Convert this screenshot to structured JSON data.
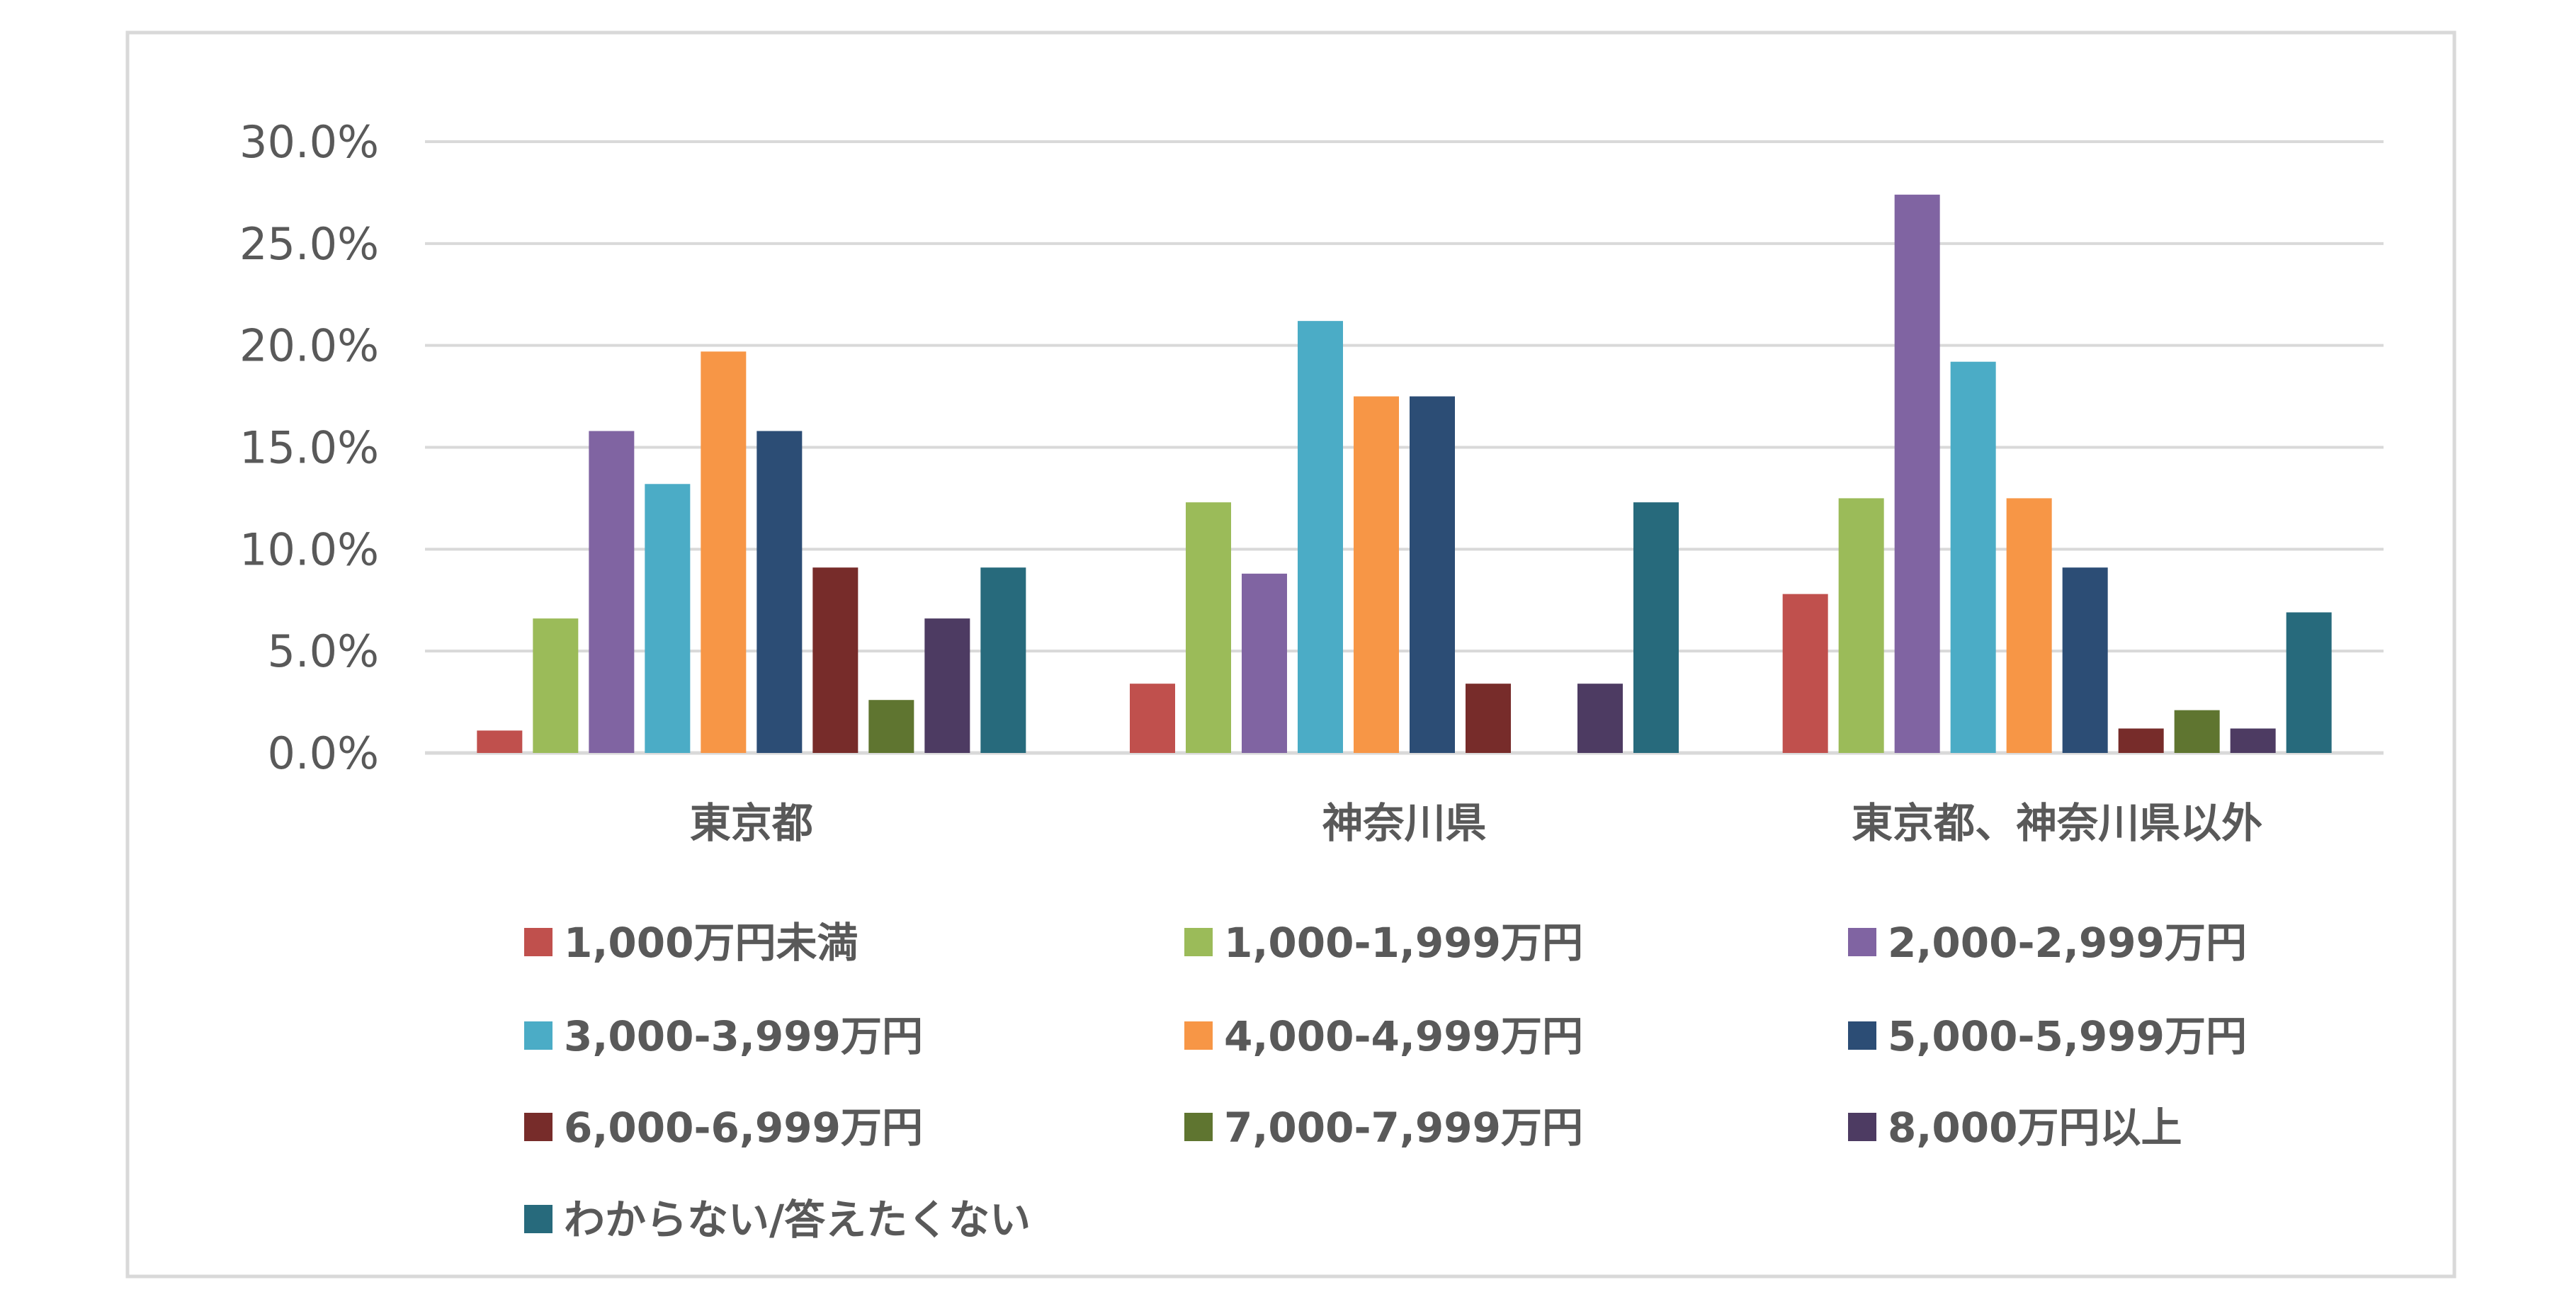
{
  "chart_data": {
    "type": "bar",
    "title": "",
    "xlabel": "",
    "ylabel": "",
    "ylim": [
      0,
      30
    ],
    "y_ticks": [
      "0.0%",
      "5.0%",
      "10.0%",
      "15.0%",
      "20.0%",
      "25.0%",
      "30.0%"
    ],
    "y_tick_values": [
      0,
      5,
      10,
      15,
      20,
      25,
      30
    ],
    "grid": true,
    "legend_position": "bottom",
    "categories": [
      "東京都",
      "神奈川県",
      "東京都、神奈川県以外"
    ],
    "series": [
      {
        "name": "1,000万円未満",
        "color": "#C0504D",
        "values": [
          1.1,
          3.4,
          7.8
        ]
      },
      {
        "name": "1,000-1,999万円",
        "color": "#9BBB59",
        "values": [
          6.6,
          12.3,
          12.5
        ]
      },
      {
        "name": "2,000-2,999万円",
        "color": "#8064A2",
        "values": [
          15.8,
          8.8,
          27.4
        ]
      },
      {
        "name": "3,000-3,999万円",
        "color": "#4BACC6",
        "values": [
          13.2,
          21.2,
          19.2
        ]
      },
      {
        "name": "4,000-4,999万円",
        "color": "#F79646",
        "values": [
          19.7,
          17.5,
          12.5
        ]
      },
      {
        "name": "5,000-5,999万円",
        "color": "#2C4D75",
        "values": [
          15.8,
          17.5,
          9.1
        ]
      },
      {
        "name": "6,000-6,999万円",
        "color": "#772C2A",
        "values": [
          9.1,
          3.4,
          1.2
        ]
      },
      {
        "name": "7,000-7,999万円",
        "color": "#5F7530",
        "values": [
          2.6,
          0,
          2.1
        ]
      },
      {
        "name": "8,000万円以上",
        "color": "#4D3B62",
        "values": [
          6.6,
          3.4,
          1.2
        ]
      },
      {
        "name": "わからない/答えたくない",
        "color": "#276A7C",
        "values": [
          9.1,
          12.3,
          6.9
        ]
      }
    ]
  }
}
